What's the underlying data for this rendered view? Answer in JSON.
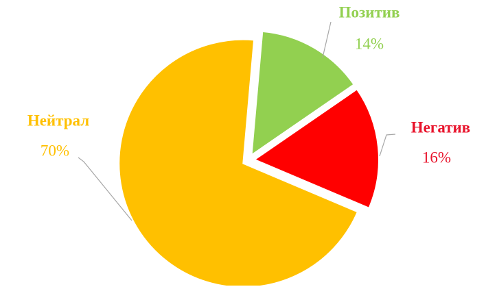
{
  "chart_data": {
    "type": "pie",
    "categories": [
      "Позитив",
      "Негатив",
      "Нейтрал"
    ],
    "values": [
      14,
      16,
      70
    ],
    "value_labels": [
      "14%",
      "16%",
      "70%"
    ],
    "colors": [
      "#92d050",
      "#ff0000",
      "#ffc000"
    ],
    "label_colors": [
      "#92d050",
      "#e8132b",
      "#ffc000"
    ]
  }
}
